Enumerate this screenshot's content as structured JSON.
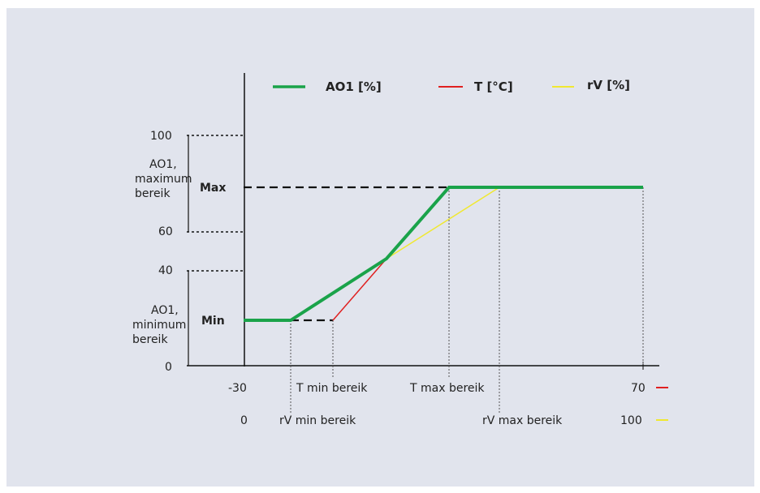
{
  "legend": {
    "ao1": {
      "label": "AO1 [%]",
      "color": "#1aa34a"
    },
    "t": {
      "label": "T [°C]",
      "color": "#e02020"
    },
    "rv": {
      "label": "rV [%]",
      "color": "#f0e830"
    }
  },
  "y_ticks": {
    "t100": "100",
    "t60": "60",
    "t40": "40",
    "t0": "0"
  },
  "y_labels": {
    "max_range": [
      "AO1,",
      "maximum",
      "bereik"
    ],
    "min_range": [
      "AO1,",
      "minimum",
      "bereik"
    ],
    "max": "Max",
    "min": "Min"
  },
  "x_axis_t": {
    "start": "-30",
    "end": "70",
    "min": "T min bereik",
    "max": "T max bereik"
  },
  "x_axis_rv": {
    "start": "0",
    "end": "100",
    "min": "rV min bereik",
    "max": "rV max bereik"
  }
}
